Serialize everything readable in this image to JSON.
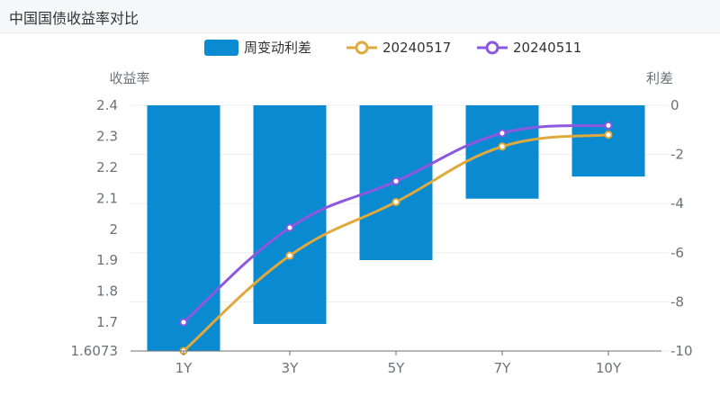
{
  "panel": {
    "title": "中国国债收益率对比"
  },
  "chart_data": {
    "type": "bar+line",
    "categories": [
      "1Y",
      "3Y",
      "5Y",
      "7Y",
      "10Y"
    ],
    "legend": [
      "周变动利差",
      "20240517",
      "20240511"
    ],
    "legend_position": "top-center",
    "y_left": {
      "name": "收益率",
      "min": 1.6073,
      "max": 2.4,
      "ticks": [
        "1.6073",
        "1.7",
        "1.8",
        "1.9",
        "2",
        "2.1",
        "2.2",
        "2.3",
        "2.4"
      ]
    },
    "y_right": {
      "name": "利差",
      "min": -10,
      "max": 0,
      "ticks": [
        "-10",
        "-8",
        "-6",
        "-4",
        "-2",
        "0"
      ]
    },
    "series": [
      {
        "name": "周变动利差",
        "type": "bar",
        "axis": "right",
        "color": "#0a8ad0",
        "values": [
          -10.2,
          -8.9,
          -6.3,
          -3.8,
          -2.9
        ]
      },
      {
        "name": "20240517",
        "type": "line",
        "axis": "left",
        "color": "#e0a93c",
        "values": [
          1.6073,
          1.915,
          2.088,
          2.267,
          2.305
        ]
      },
      {
        "name": "20240511",
        "type": "line",
        "axis": "left",
        "color": "#8d58e0",
        "values": [
          1.7,
          2.005,
          2.155,
          2.31,
          2.335
        ]
      }
    ]
  }
}
